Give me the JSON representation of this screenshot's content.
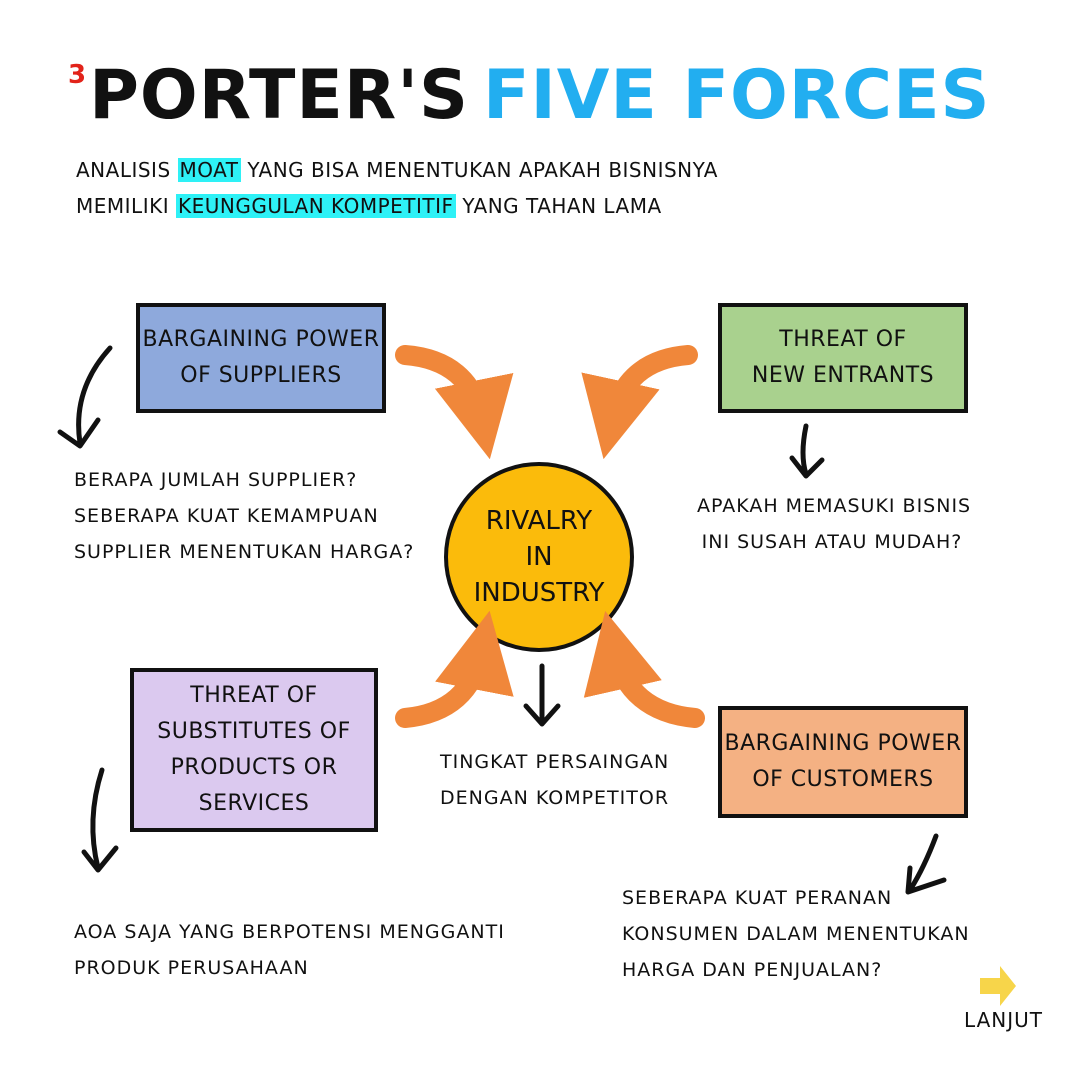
{
  "title": {
    "number": "3",
    "part1": "PORTER'S",
    "part2": "FIVE FORCES"
  },
  "subtitle": {
    "line1_a": "ANALISIS ",
    "line1_hl": "MOAT",
    "line1_b": " YANG BISA MENENTUKAN APAKAH BISNISNYA",
    "line2_a": "MEMILIKI ",
    "line2_hl": "KEUNGGULAN KOMPETITIF",
    "line2_b": " YANG TAHAN LAMA"
  },
  "center": {
    "line1": "RIVALRY",
    "line2": "IN",
    "line3": "INDUSTRY",
    "note_line1": "TINGKAT PERSAINGAN",
    "note_line2": "DENGAN KOMPETITOR"
  },
  "forces": {
    "suppliers": {
      "line1": "BARGAINING POWER",
      "line2": "OF SUPPLIERS",
      "note_line1": "BERAPA JUMLAH SUPPLIER?",
      "note_line2": "SEBERAPA KUAT KEMAMPUAN",
      "note_line3": "SUPPLIER MENENTUKAN HARGA?"
    },
    "new_entrants": {
      "line1": "THREAT OF",
      "line2": "NEW ENTRANTS",
      "note_line1": "APAKAH MEMASUKI BISNIS",
      "note_line2": "INI SUSAH ATAU MUDAH?"
    },
    "substitutes": {
      "line1": "THREAT OF",
      "line2": "SUBSTITUTES OF",
      "line3": "PRODUCTS OR",
      "line4": "SERVICES",
      "note_line1": "AOA SAJA YANG BERPOTENSI MENGGANTI",
      "note_line2": "PRODUK PERUSAHAAN"
    },
    "customers": {
      "line1": "BARGAINING POWER",
      "line2": "OF CUSTOMERS",
      "note_line1": "SEBERAPA KUAT PERANAN",
      "note_line2": "KONSUMEN DALAM MENENTUKAN",
      "note_line3": "HARGA DAN PENJUALAN?"
    }
  },
  "next": {
    "label": "LANJUT",
    "icon": "arrow-right-icon"
  },
  "colors": {
    "title_blue": "#22aef0",
    "highlight": "#2ef1f6",
    "suppliers": "#8ea9dc",
    "new_entrants": "#a9d18e",
    "substitutes": "#dbc9ef",
    "customers": "#f4b183",
    "center": "#fbbb0b",
    "curved_arrows": "#f0873a",
    "next_arrow": "#f7d54a"
  }
}
